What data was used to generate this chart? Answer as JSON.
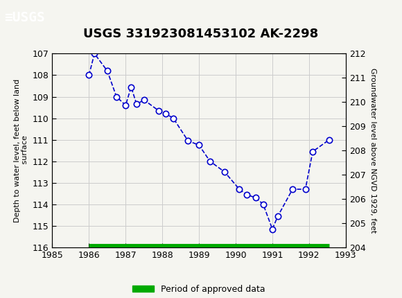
{
  "title": "USGS 331923081453102 AK-2298",
  "xlabel": "",
  "ylabel_left": "Depth to water level, feet below land\n surface",
  "ylabel_right": "Groundwater level above NGVD 1929, feet",
  "x": [
    1986.0,
    1986.15,
    1986.5,
    1986.75,
    1987.0,
    1987.15,
    1987.3,
    1987.5,
    1987.9,
    1988.1,
    1988.3,
    1988.7,
    1989.0,
    1989.3,
    1989.7,
    1990.1,
    1990.3,
    1990.55,
    1990.75,
    1991.0,
    1991.15,
    1991.55,
    1991.9,
    1992.1,
    1992.55
  ],
  "y": [
    108.0,
    107.0,
    107.8,
    109.0,
    109.4,
    108.55,
    109.35,
    109.15,
    109.65,
    109.8,
    110.0,
    111.05,
    111.25,
    112.0,
    112.5,
    113.3,
    113.55,
    113.7,
    114.0,
    115.15,
    114.55,
    113.3,
    113.3,
    111.55,
    111.0
  ],
  "ylim_left": [
    116.0,
    107.0
  ],
  "ylim_right": [
    204.0,
    212.0
  ],
  "xlim": [
    1985.0,
    1993.0
  ],
  "yticks_left": [
    107.0,
    108.0,
    109.0,
    110.0,
    111.0,
    112.0,
    113.0,
    114.0,
    115.0,
    116.0
  ],
  "yticks_right": [
    204.0,
    205.0,
    206.0,
    207.0,
    208.0,
    209.0,
    210.0,
    211.0,
    212.0
  ],
  "xticks": [
    1985,
    1986,
    1987,
    1988,
    1989,
    1990,
    1991,
    1992,
    1993
  ],
  "line_color": "#0000cc",
  "marker_color": "#0000cc",
  "marker_face": "white",
  "line_style": "--",
  "marker_style": "o",
  "grid_color": "#cccccc",
  "header_color": "#1a6b3c",
  "approved_bar_color": "#00aa00",
  "approved_bar_start": 1986.0,
  "approved_bar_end": 1992.55,
  "approved_bar_y": 116.0,
  "legend_label": "Period of approved data",
  "background_color": "#f5f5f0"
}
